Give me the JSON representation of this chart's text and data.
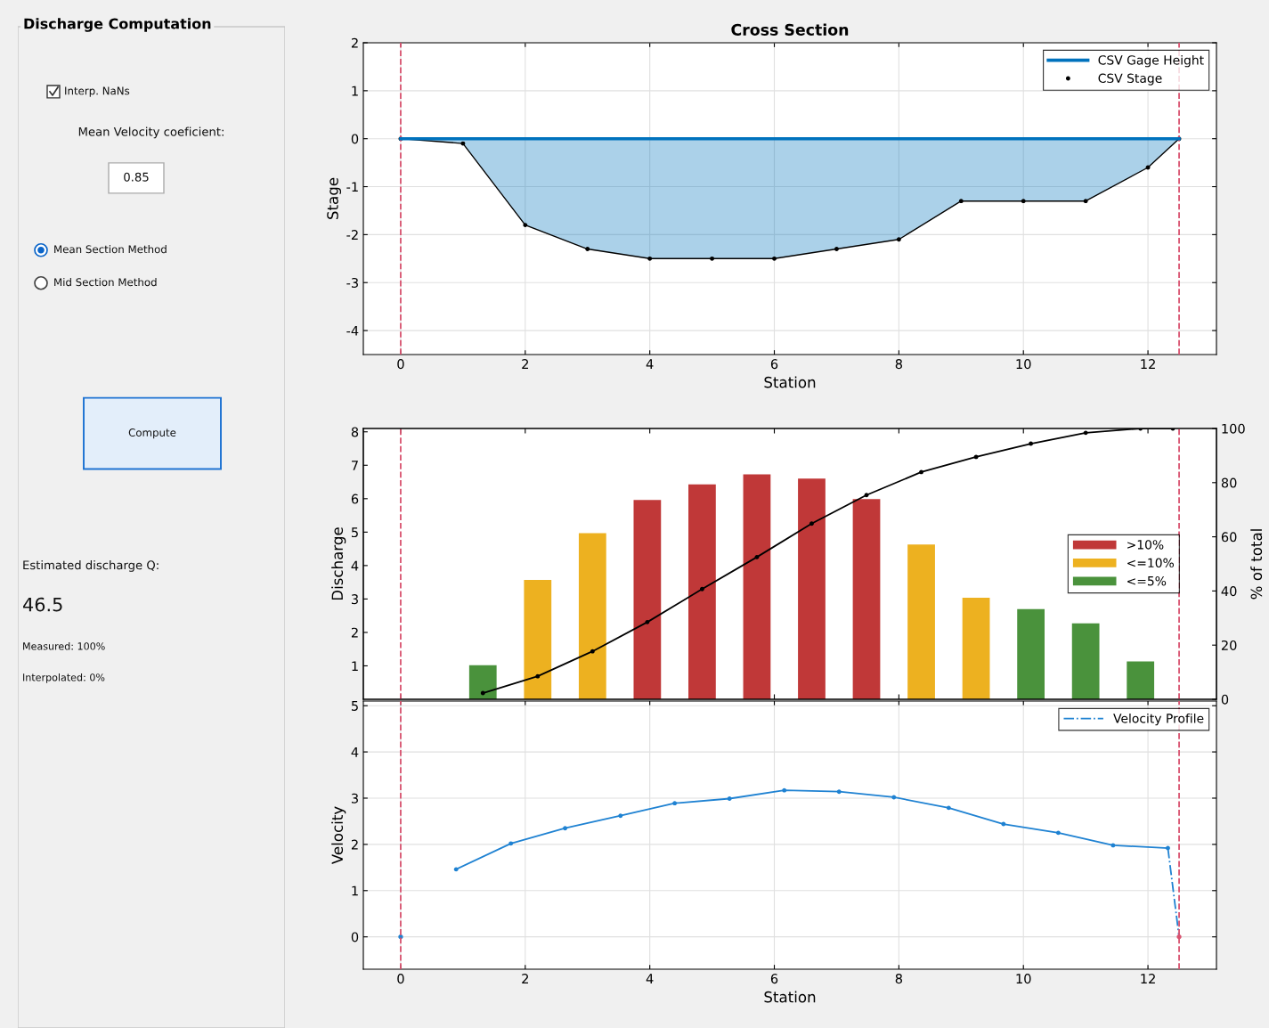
{
  "chart_data": [
    {
      "type": "other",
      "title": "Discharge Computation",
      "annotations": [
        "Interp. NaNs",
        "Mean Velocity coeficient:",
        "0.85",
        "Mean Section Method",
        "Mid Section Method",
        "Compute",
        "Estimated discharge Q:",
        "46.5",
        "Measured: 100%",
        "Interpolated: 0%"
      ]
    },
    {
      "type": "area",
      "title": "Cross Section",
      "xlabel": "Station",
      "ylabel": "Stage",
      "xlim": [
        -0.6,
        13.1
      ],
      "ylim": [
        -4.5,
        2
      ],
      "xticks": [
        0,
        2,
        4,
        6,
        8,
        10,
        12
      ],
      "yticks": [
        -4,
        -3,
        -2,
        -1,
        0,
        1,
        2
      ],
      "grid": true,
      "legend": "top right",
      "series": [
        {
          "name": "CSV Gage Height",
          "type": "line",
          "color": "#0072bd",
          "x": [
            0,
            1,
            2,
            3,
            4,
            5,
            6,
            7,
            8,
            9,
            10,
            11,
            12,
            12.5
          ],
          "values": [
            0,
            0,
            0,
            0,
            0,
            0,
            0,
            0,
            0,
            0,
            0,
            0,
            0,
            0
          ],
          "lower": [
            0,
            -0.1,
            -1.8,
            -2.3,
            -2.5,
            -2.5,
            -2.5,
            -2.3,
            -2.1,
            -1.3,
            -1.3,
            -1.3,
            -0.6,
            0
          ],
          "upper": [
            0,
            0,
            0,
            0,
            0,
            0,
            0,
            0,
            0,
            0,
            0,
            0,
            0,
            0
          ]
        },
        {
          "name": "CSV Stage",
          "type": "line",
          "color": "#000000",
          "marker": "circle",
          "line_style": "solid",
          "x": [
            0,
            1,
            2,
            3,
            4,
            5,
            6,
            7,
            8,
            9,
            10,
            11,
            12,
            12.5
          ],
          "values": [
            0,
            -0.1,
            -1.8,
            -2.3,
            -2.5,
            -2.5,
            -2.5,
            -2.3,
            -2.1,
            -1.3,
            -1.3,
            -1.3,
            -0.6,
            0
          ]
        }
      ],
      "ref_lines": [
        {
          "axis": "x",
          "value": 0,
          "color": "#d95370",
          "line_style": "dashed"
        },
        {
          "axis": "x",
          "value": 12.5,
          "color": "#d95370",
          "line_style": "dashed"
        }
      ]
    },
    {
      "type": "bar",
      "ylabel": "Discharge",
      "y2label": "% of total",
      "xlim": [
        -0.6,
        13.1
      ],
      "ylim": [
        0,
        8.1
      ],
      "yticks": [
        1,
        2,
        3,
        4,
        5,
        6,
        7,
        8
      ],
      "y2lim": [
        0,
        100
      ],
      "y2ticks": [
        0,
        20,
        40,
        60,
        80,
        100
      ],
      "grid": false,
      "legend": "right",
      "tick_labels": "y",
      "x": [
        1.32,
        2.2,
        3.08,
        3.96,
        4.84,
        5.72,
        6.6,
        7.48,
        8.36,
        9.24,
        10.12,
        11.0,
        11.88
      ],
      "series": [
        {
          "name": ">10%",
          "type": "bar",
          "color": "#c03838",
          "values": [
            null,
            null,
            null,
            5.96,
            6.43,
            6.73,
            6.6,
            5.99,
            null,
            null,
            null,
            null,
            null
          ]
        },
        {
          "name": "<=10%",
          "type": "bar",
          "color": "#edb120",
          "values": [
            null,
            3.57,
            4.97,
            null,
            null,
            null,
            null,
            null,
            4.63,
            3.04,
            null,
            null,
            null
          ]
        },
        {
          "name": "<=5%",
          "type": "bar",
          "color": "#4a923c",
          "values": [
            1.02,
            null,
            null,
            null,
            null,
            null,
            null,
            null,
            null,
            null,
            2.7,
            2.27,
            1.13
          ]
        },
        {
          "type": "line",
          "axis": "y2",
          "color": "#000000",
          "marker": "circle",
          "x": [
            1.32,
            2.2,
            3.08,
            3.96,
            4.84,
            5.72,
            6.6,
            7.48,
            8.36,
            9.24,
            10.12,
            11.0,
            11.88,
            12.4
          ],
          "values": [
            2.3,
            8.5,
            17.7,
            28.5,
            40.7,
            52.5,
            64.9,
            75.4,
            83.9,
            89.5,
            94.4,
            98.4,
            100,
            100
          ]
        }
      ],
      "ref_lines": [
        {
          "axis": "x",
          "value": 0,
          "color": "#d95370",
          "line_style": "dashed"
        },
        {
          "axis": "x",
          "value": 12.5,
          "color": "#d95370",
          "line_style": "dashed"
        }
      ]
    },
    {
      "type": "line",
      "xlabel": "Station",
      "ylabel": "Velocity",
      "xlim": [
        -0.6,
        13.1
      ],
      "ylim": [
        -0.7,
        5.1
      ],
      "xticks": [
        0,
        2,
        4,
        6,
        8,
        10,
        12
      ],
      "yticks": [
        0,
        1,
        2,
        3,
        4,
        5
      ],
      "grid": true,
      "legend": "top right",
      "series": [
        {
          "type": "line",
          "color": "#1f82d2",
          "marker": "circle",
          "line_style": "solid",
          "x": [
            0.89,
            1.77,
            2.64,
            3.53,
            4.4,
            5.28,
            6.16,
            7.04,
            7.92,
            8.8,
            9.68,
            10.56,
            11.44,
            12.32
          ],
          "values": [
            1.46,
            2.02,
            2.35,
            2.62,
            2.89,
            2.99,
            3.17,
            3.14,
            3.02,
            2.79,
            2.44,
            2.25,
            1.98,
            1.92
          ]
        },
        {
          "name": "Velocity Profile",
          "type": "line",
          "color": "#1f82d2",
          "line_style": "dashdot",
          "x": [
            12.32,
            12.5
          ],
          "values": [
            1.92,
            0
          ]
        },
        {
          "type": "scatter",
          "color": "#1f82d2",
          "marker": "circle",
          "x": [
            0
          ],
          "values": [
            0
          ]
        },
        {
          "type": "scatter",
          "color": "#d95370",
          "marker": "circle",
          "x": [
            12.5
          ],
          "values": [
            0
          ]
        }
      ],
      "ref_lines": [
        {
          "axis": "x",
          "value": 0,
          "color": "#d95370",
          "line_style": "dashed"
        },
        {
          "axis": "x",
          "value": 12.5,
          "color": "#d95370",
          "line_style": "dashed"
        }
      ]
    }
  ]
}
